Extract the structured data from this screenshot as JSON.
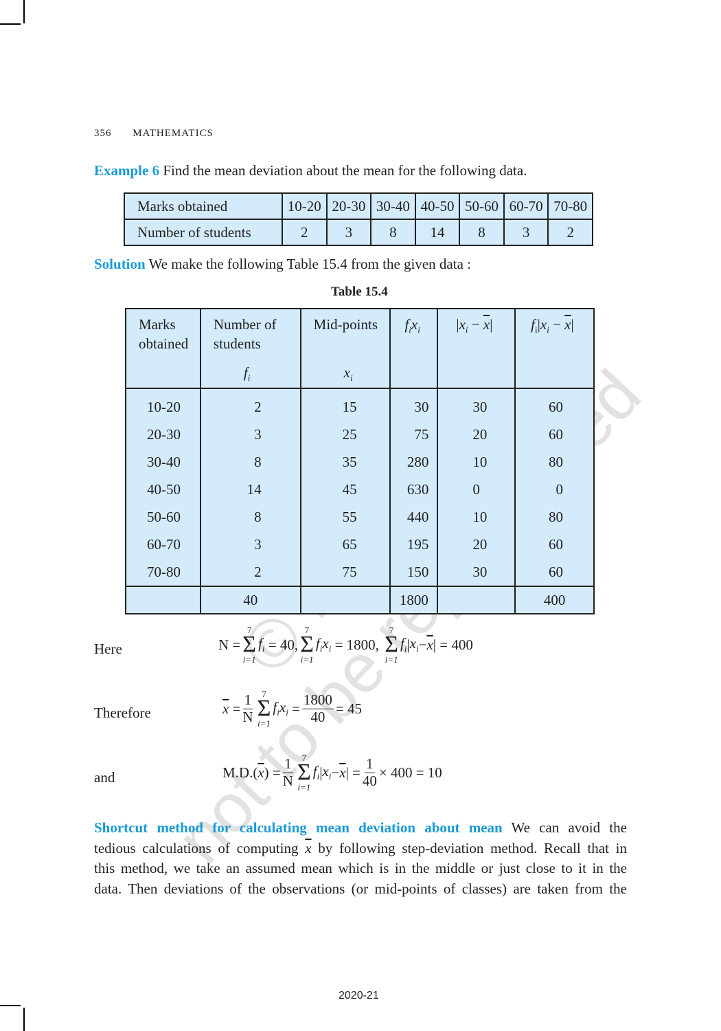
{
  "header": {
    "page_number": "356",
    "subject": "MATHEMATICS"
  },
  "example": {
    "label": "Example 6",
    "text": " Find the mean deviation about the mean for the following data."
  },
  "table1": {
    "row_headers": [
      "Marks obtained",
      "Number of students"
    ],
    "classes": [
      "10-20",
      "20-30",
      "30-40",
      "40-50",
      "50-60",
      "60-70",
      "70-80"
    ],
    "students": [
      "2",
      "3",
      "8",
      "14",
      "8",
      "3",
      "2"
    ]
  },
  "solution": {
    "label": "Solution",
    "text": " We make the following Table 15.4 from the given data :"
  },
  "table2": {
    "caption": "Table 15.4",
    "headers": [
      {
        "line1": "Marks",
        "line2": "obtained",
        "sym": ""
      },
      {
        "line1": "Number of",
        "line2": "students",
        "sym": "fi"
      },
      {
        "line1": "Mid-points",
        "line2": "",
        "sym": "xi"
      },
      {
        "line1": "fixi",
        "line2": "",
        "sym": ""
      },
      {
        "line1": "|xi − x̄|",
        "line2": "",
        "sym": ""
      },
      {
        "line1": "fi|xi − x̄|",
        "line2": "",
        "sym": ""
      }
    ],
    "rows": [
      [
        "10-20",
        "2",
        "15",
        "30",
        "30",
        "60"
      ],
      [
        "20-30",
        "3",
        "25",
        "75",
        "20",
        "60"
      ],
      [
        "30-40",
        "8",
        "35",
        "280",
        "10",
        "80"
      ],
      [
        "40-50",
        "14",
        "45",
        "630",
        "0",
        "0"
      ],
      [
        "50-60",
        "8",
        "55",
        "440",
        "10",
        "80"
      ],
      [
        "60-70",
        "3",
        "65",
        "195",
        "20",
        "60"
      ],
      [
        "70-80",
        "2",
        "75",
        "150",
        "30",
        "60"
      ]
    ],
    "totals": [
      "",
      "40",
      "",
      "1800",
      "",
      "400"
    ]
  },
  "equations": {
    "here_label": "Here",
    "therefore_label": "Therefore",
    "and_label": "and",
    "sum_upper": "7",
    "sum_lower": "i=1",
    "eq1": {
      "lhs": "N =",
      "p1": "= 40,",
      "p2": "= 1800,",
      "p3": "= 400"
    },
    "eq2": {
      "one": "1",
      "N": "N",
      "num": "1800",
      "den": "40",
      "result": "= 45"
    },
    "eq3": {
      "lhs": "M.D.",
      "one": "1",
      "N": "N",
      "den": "40",
      "result": "× 400 = 10"
    }
  },
  "shortcut": {
    "label": "Shortcut method for calculating mean deviation about mean",
    "line1": " We can avoid the",
    "line2a": "tedious calculations of computing ",
    "line2b": " by following step-deviation method. Recall that in",
    "line3": "this method, we take an assumed mean which is in the middle or just close to it in the",
    "line4": "data. Then deviations of the observations (or mid-points of classes) are taken from the"
  },
  "footer": {
    "year": "2020-21"
  },
  "watermark": {
    "line1": "© NCERT",
    "line2": "not to be republished"
  },
  "colors": {
    "accent": "#1a9ad6",
    "table_fill": "#d3ebfa"
  }
}
